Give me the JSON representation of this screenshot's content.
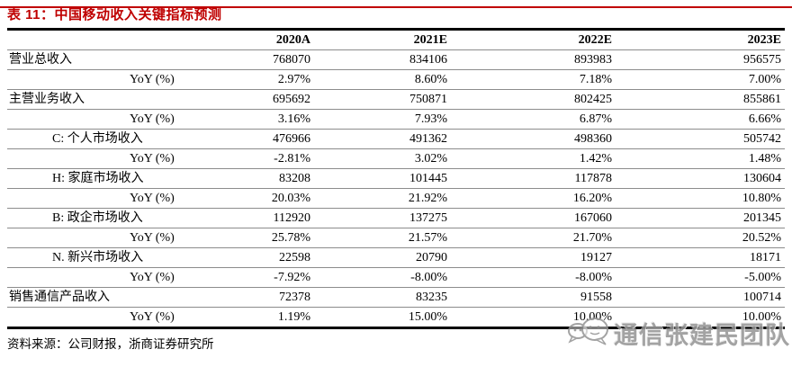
{
  "page": {
    "title": "表 11：中国移动收入关键指标预测",
    "source": "资料来源：公司财报，浙商证券研究所",
    "watermark": "通信张建民团队",
    "accent_red": "#c00000",
    "watermark_gray": "#979797"
  },
  "table": {
    "columns": [
      "",
      "2020A",
      "2021E",
      "2022E",
      "2023E"
    ],
    "rows": [
      {
        "label": "营业总收入",
        "indent": 0,
        "values": [
          "768070",
          "834106",
          "893983",
          "956575"
        ]
      },
      {
        "label": "YoY (%)",
        "indent": 2,
        "values": [
          "2.97%",
          "8.60%",
          "7.18%",
          "7.00%"
        ]
      },
      {
        "label": "主营业务收入",
        "indent": 0,
        "values": [
          "695692",
          "750871",
          "802425",
          "855861"
        ]
      },
      {
        "label": "YoY (%)",
        "indent": 2,
        "values": [
          "3.16%",
          "7.93%",
          "6.87%",
          "6.66%"
        ]
      },
      {
        "label": "C: 个人市场收入",
        "indent": 1,
        "values": [
          "476966",
          "491362",
          "498360",
          "505742"
        ]
      },
      {
        "label": "YoY (%)",
        "indent": 2,
        "values": [
          "-2.81%",
          "3.02%",
          "1.42%",
          "1.48%"
        ]
      },
      {
        "label": "H: 家庭市场收入",
        "indent": 1,
        "values": [
          "83208",
          "101445",
          "117878",
          "130604"
        ]
      },
      {
        "label": "YoY (%)",
        "indent": 2,
        "values": [
          "20.03%",
          "21.92%",
          "16.20%",
          "10.80%"
        ]
      },
      {
        "label": "B: 政企市场收入",
        "indent": 1,
        "values": [
          "112920",
          "137275",
          "167060",
          "201345"
        ]
      },
      {
        "label": "YoY (%)",
        "indent": 2,
        "values": [
          "25.78%",
          "21.57%",
          "21.70%",
          "20.52%"
        ]
      },
      {
        "label": "N. 新兴市场收入",
        "indent": 1,
        "values": [
          "22598",
          "20790",
          "19127",
          "18171"
        ]
      },
      {
        "label": "YoY (%)",
        "indent": 2,
        "values": [
          "-7.92%",
          "-8.00%",
          "-8.00%",
          "-5.00%"
        ]
      },
      {
        "label": "销售通信产品收入",
        "indent": 0,
        "values": [
          "72378",
          "83235",
          "91558",
          "100714"
        ]
      },
      {
        "label": "YoY (%)",
        "indent": 2,
        "values": [
          "1.19%",
          "15.00%",
          "10.00%",
          "10.00%"
        ]
      }
    ]
  }
}
